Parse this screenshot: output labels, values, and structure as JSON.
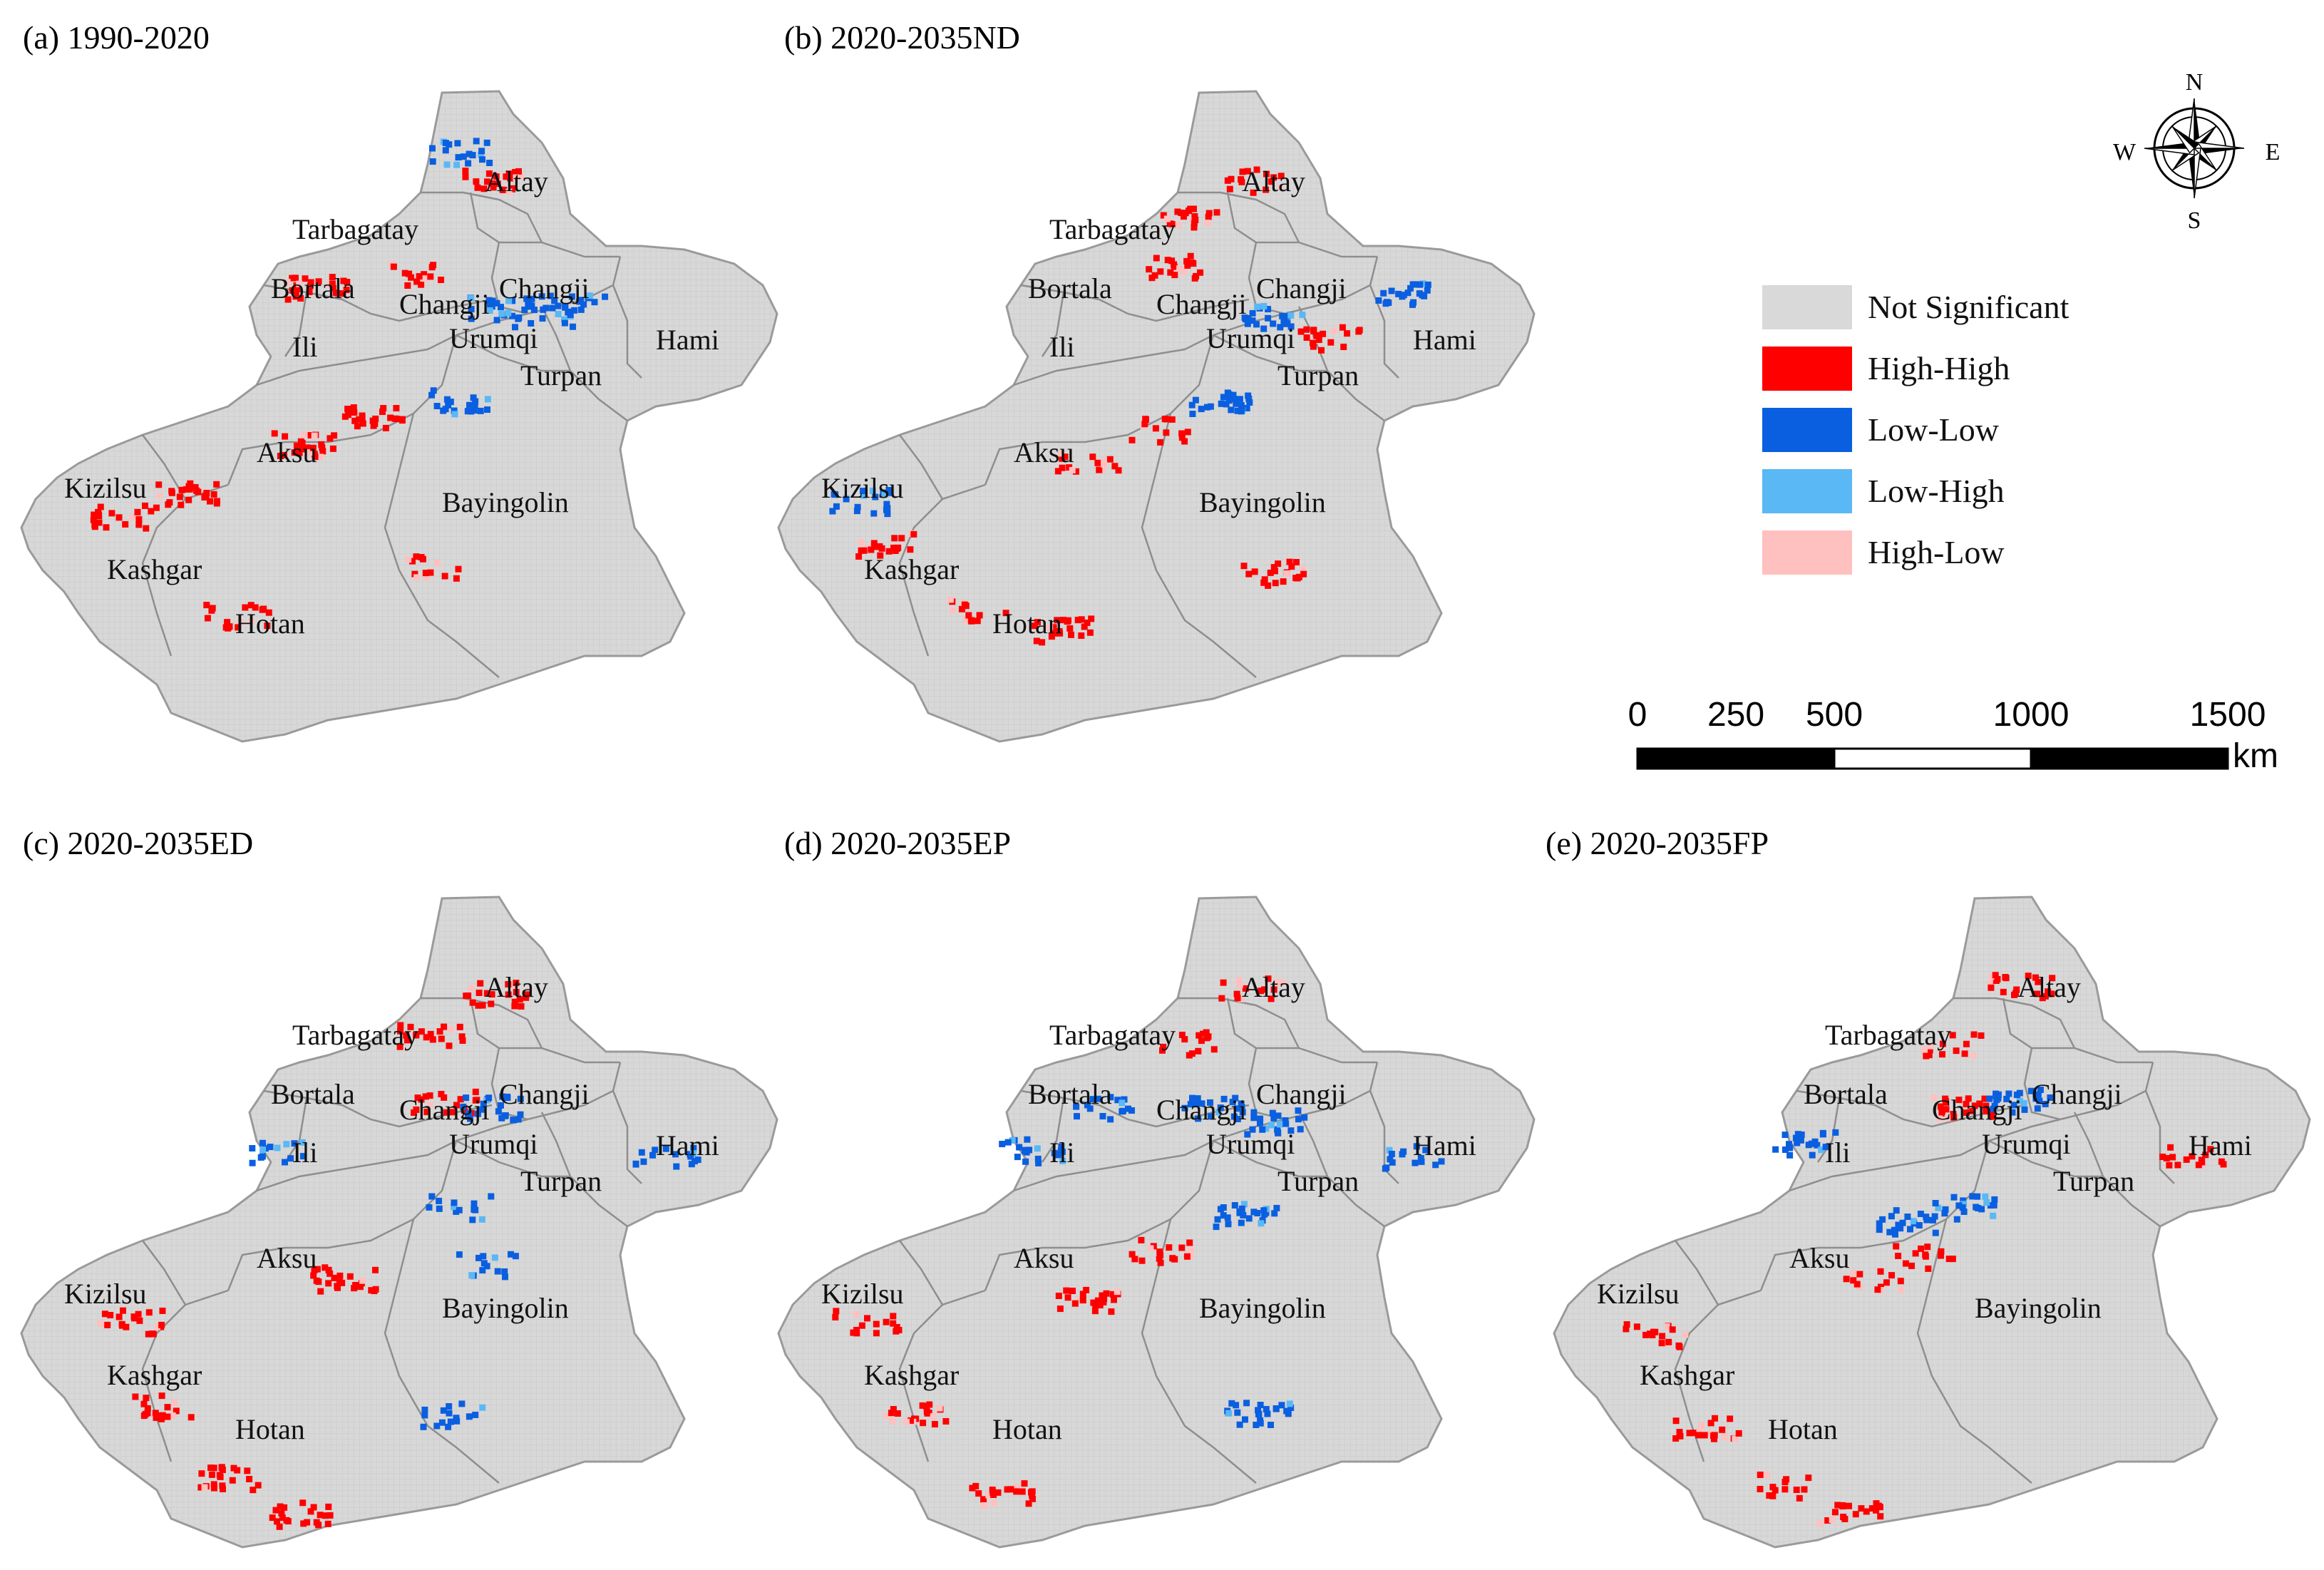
{
  "panels": [
    {
      "title": "(a) 1990-2020"
    },
    {
      "title": "(b) 2020-2035ND"
    },
    {
      "title": "(c) 2020-2035ED"
    },
    {
      "title": "(d) 2020-2035EP"
    },
    {
      "title": "(e) 2020-2035FP"
    }
  ],
  "regions": [
    "Altay",
    "Tarbagatay",
    "Bortala",
    "Changji",
    "Changji",
    "Ili",
    "Urumqi",
    "Turpan",
    "Hami",
    "Aksu",
    "Kizilsu",
    "Kashgar",
    "Bayingolin",
    "Hotan"
  ],
  "legend": {
    "items": [
      {
        "label": "Not Significant",
        "color": "#d9d9d9"
      },
      {
        "label": "High-High",
        "color": "#ff0000"
      },
      {
        "label": "Low-Low",
        "color": "#0a5fe0"
      },
      {
        "label": "Low-High",
        "color": "#5ab8f5"
      },
      {
        "label": "High-Low",
        "color": "#ffc0c0"
      }
    ]
  },
  "scale_bar": {
    "ticks": [
      "0",
      "250",
      "500",
      "1000",
      "1500"
    ],
    "unit": "km"
  },
  "compass": {
    "n": "N",
    "s": "S",
    "e": "E",
    "w": "W"
  }
}
